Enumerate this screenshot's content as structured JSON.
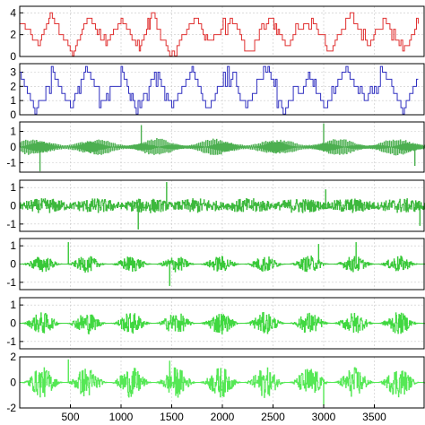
{
  "chart_data": [
    {
      "type": "line",
      "color": "#e03030",
      "ylim": [
        0,
        4.6
      ],
      "yticks": [
        0,
        2,
        4
      ],
      "xlim": [
        0,
        4000
      ],
      "grid": true,
      "style": "quant4",
      "series": [
        {
          "x": [
            0,
            180,
            300,
            520,
            680,
            850,
            1000,
            1180,
            1300,
            1480,
            1720,
            1870,
            2100,
            2250,
            2480,
            2620,
            2880,
            3050,
            3260,
            3450,
            3600,
            3780,
            3950
          ],
          "values": [
            3.2,
            1.0,
            3.8,
            0.3,
            3.6,
            1.2,
            3.4,
            0.5,
            3.8,
            0.2,
            3.5,
            1.3,
            3.7,
            0.4,
            3.6,
            1.1,
            3.5,
            0.3,
            3.7,
            1.0,
            3.6,
            0.5,
            3.4
          ]
        }
      ]
    },
    {
      "type": "line",
      "color": "#3030c0",
      "ylim": [
        0,
        3.6
      ],
      "yticks": [
        0,
        1,
        2,
        3
      ],
      "xlim": [
        0,
        4000
      ],
      "grid": true,
      "style": "quant4",
      "series": [
        {
          "x": [
            0,
            150,
            330,
            500,
            650,
            820,
            1000,
            1150,
            1330,
            1500,
            1700,
            1850,
            2050,
            2230,
            2450,
            2600,
            2850,
            3000,
            3200,
            3400,
            3600,
            3780,
            3950
          ],
          "values": [
            3.1,
            0.2,
            3.0,
            0.4,
            3.3,
            0.9,
            3.1,
            0.2,
            3.0,
            0.5,
            3.2,
            0.3,
            3.1,
            0.6,
            3.3,
            0.2,
            3.0,
            0.4,
            3.2,
            0.8,
            3.1,
            0.3,
            3.0
          ]
        }
      ]
    },
    {
      "type": "line",
      "color": "#4caf50",
      "ylim": [
        -1.6,
        1.6
      ],
      "yticks": [
        -1,
        0,
        1
      ],
      "xlim": [
        0,
        4000
      ],
      "grid": true,
      "style": "wave",
      "amp": 0.55,
      "density": 0.08,
      "spikes": [
        {
          "x": 200,
          "v": -1.55
        },
        {
          "x": 1200,
          "v": 1.4
        },
        {
          "x": 3000,
          "v": 1.5
        },
        {
          "x": 3900,
          "v": -1.2
        }
      ]
    },
    {
      "type": "line",
      "color": "#3cb83c",
      "ylim": [
        -1.4,
        1.4
      ],
      "yticks": [
        -1,
        0,
        1
      ],
      "xlim": [
        0,
        4000
      ],
      "grid": true,
      "style": "noise",
      "amp": 0.4,
      "density": 0.3,
      "spikes": [
        {
          "x": 1170,
          "v": -1.3
        },
        {
          "x": 1450,
          "v": 1.3
        },
        {
          "x": 3020,
          "v": 0.9
        },
        {
          "x": 3950,
          "v": -1.1
        }
      ]
    },
    {
      "type": "line",
      "color": "#38c838",
      "ylim": [
        -1.4,
        1.4
      ],
      "yticks": [
        -1,
        0,
        1
      ],
      "xlim": [
        0,
        4000
      ],
      "grid": true,
      "style": "burst",
      "amp": 0.45,
      "density": 0.5,
      "spikes": [
        {
          "x": 480,
          "v": 1.2
        },
        {
          "x": 1480,
          "v": -1.2
        },
        {
          "x": 2950,
          "v": 1.1
        },
        {
          "x": 3320,
          "v": 1.2
        }
      ]
    },
    {
      "type": "line",
      "color": "#40d840",
      "ylim": [
        -1.4,
        1.4
      ],
      "yticks": [
        -1,
        0,
        1
      ],
      "xlim": [
        0,
        4000
      ],
      "grid": true,
      "style": "burst",
      "amp": 0.6,
      "density": 0.7,
      "spikes": []
    },
    {
      "type": "line",
      "color": "#55e855",
      "ylim": [
        -2,
        2
      ],
      "yticks": [
        -2,
        0,
        2
      ],
      "xlim": [
        0,
        4000
      ],
      "grid": true,
      "style": "burst",
      "amp": 1.2,
      "density": 0.9,
      "spikes": [
        {
          "x": 480,
          "v": 1.8
        },
        {
          "x": 1480,
          "v": 1.7
        },
        {
          "x": 3000,
          "v": -1.8
        }
      ]
    }
  ],
  "xaxis": {
    "ticks": [
      500,
      1000,
      1500,
      2000,
      2500,
      3000,
      3500
    ],
    "labels": [
      "500",
      "1000",
      "1500",
      "2000",
      "2500",
      "3000",
      "3500"
    ]
  }
}
